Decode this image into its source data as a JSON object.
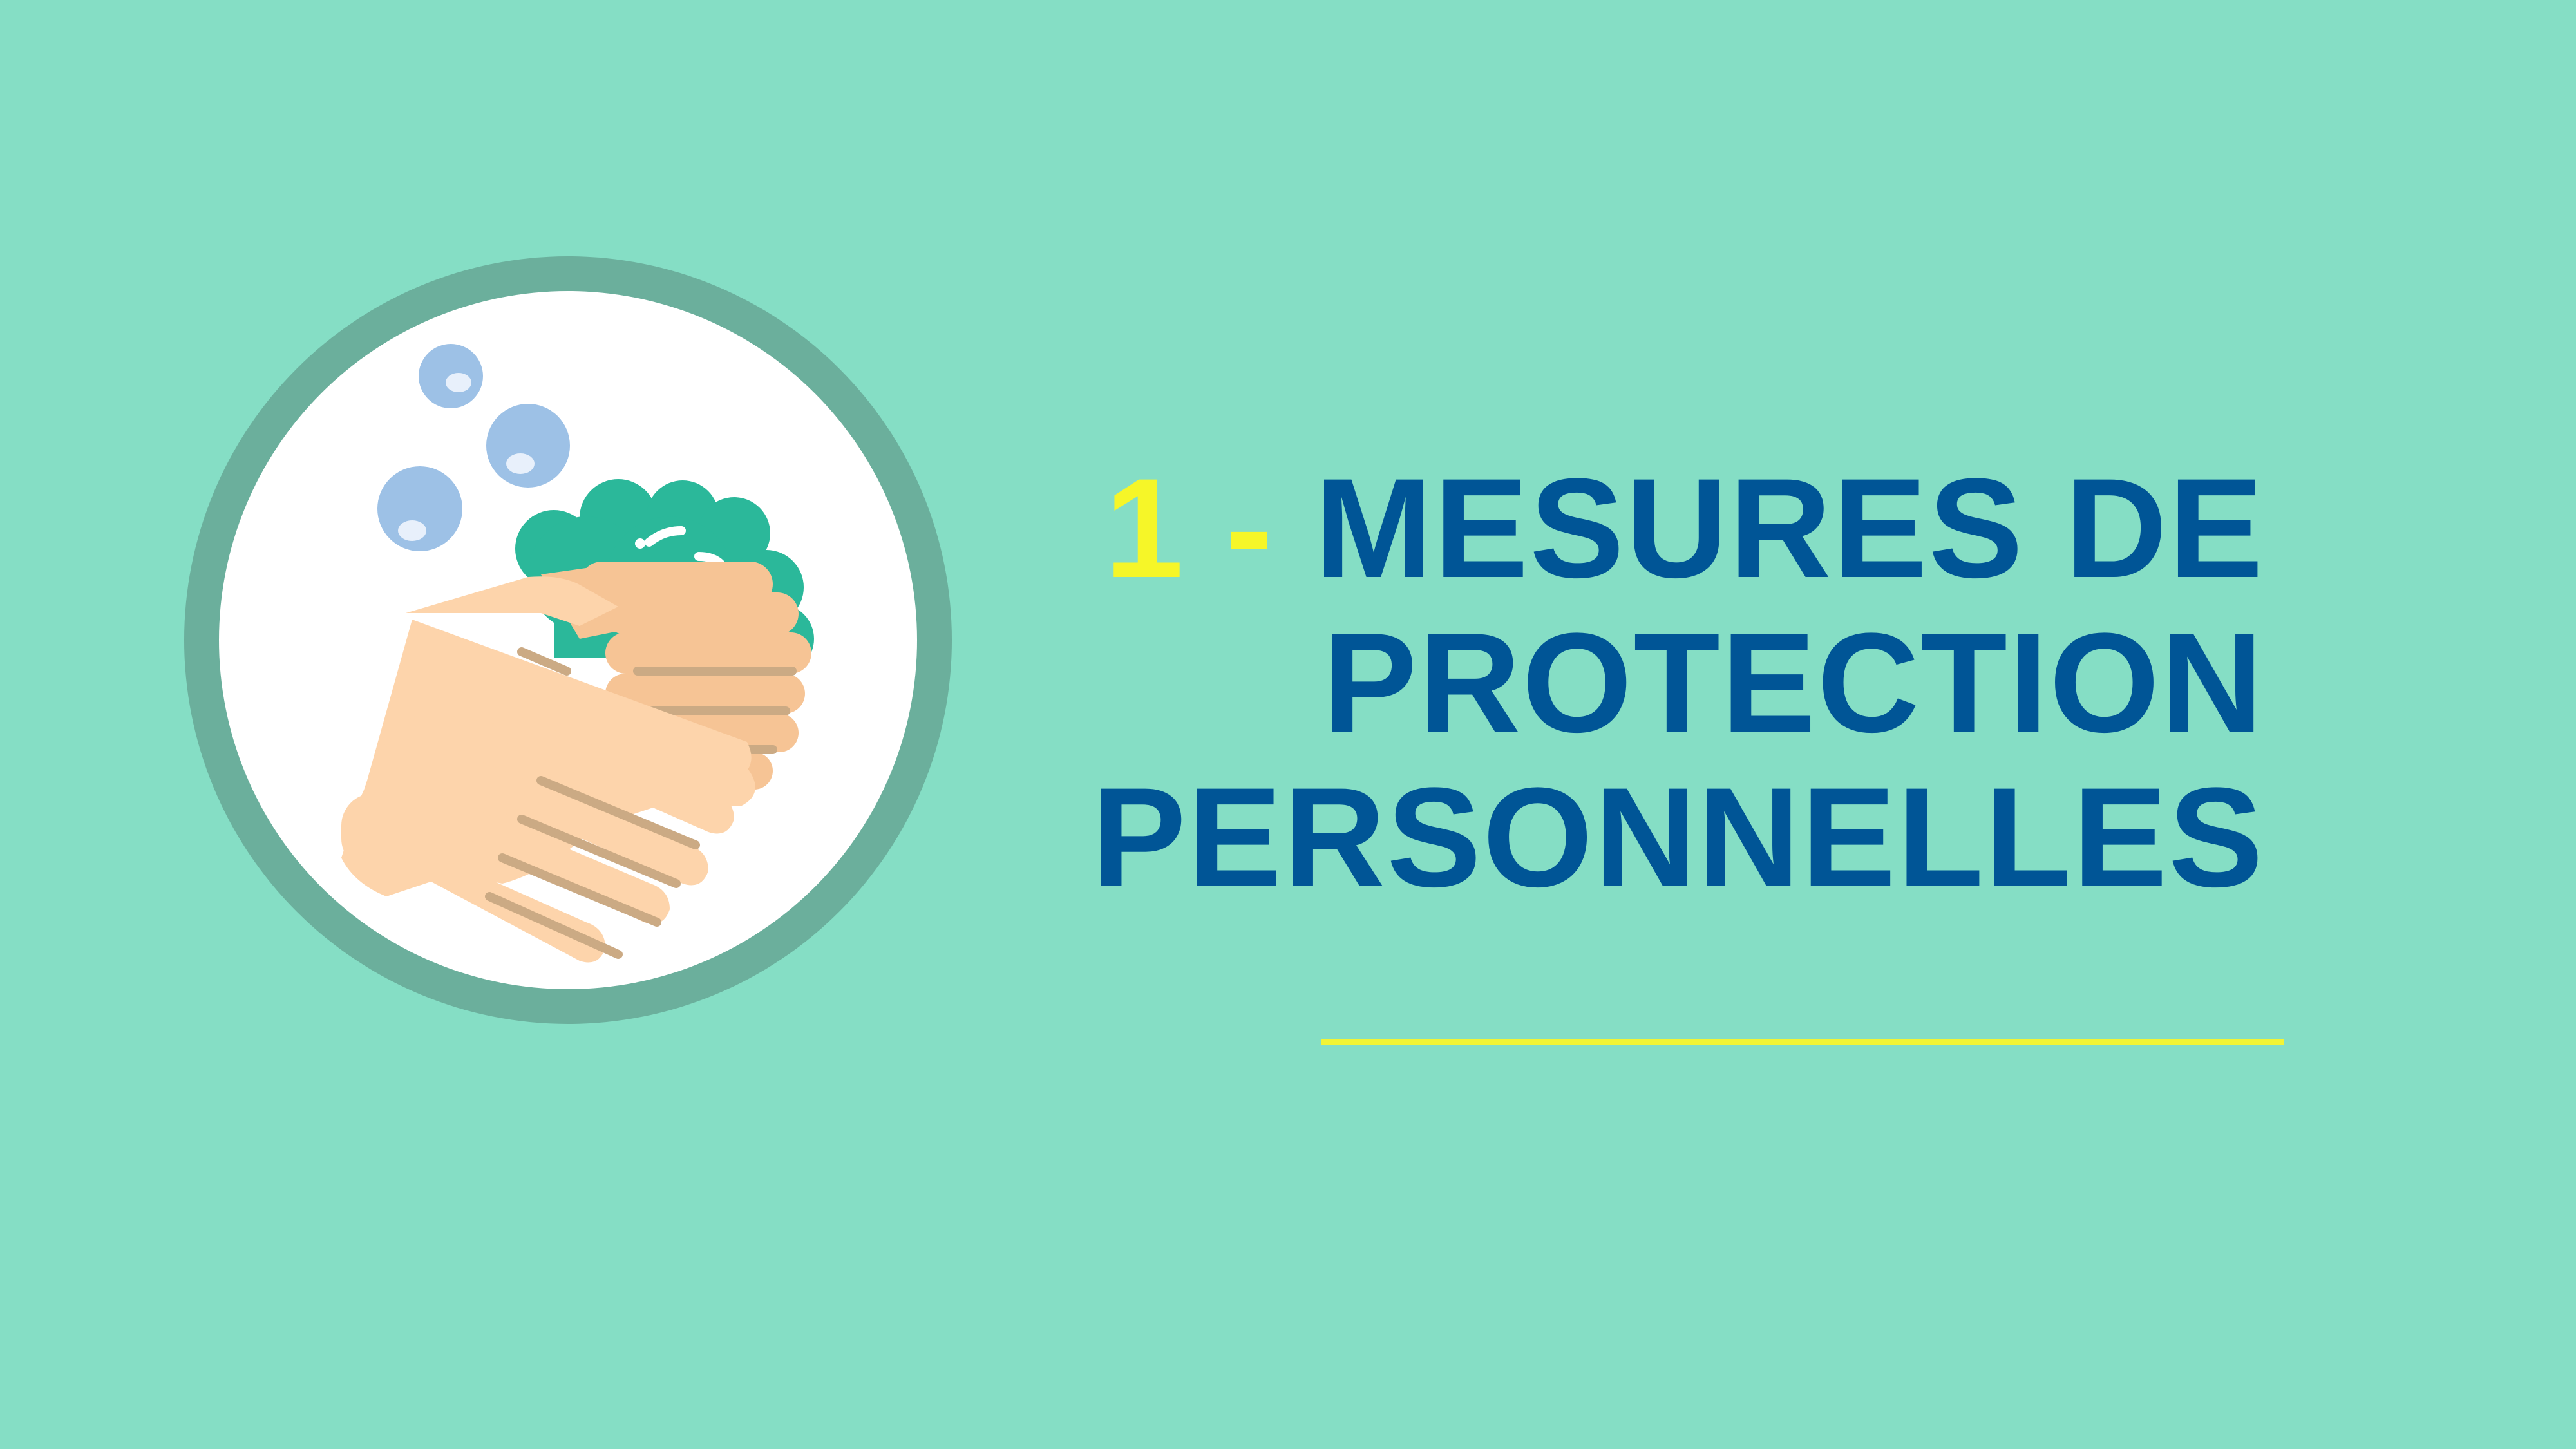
{
  "slide": {
    "title": {
      "number": "1",
      "dash": "-",
      "line1": "MESURES DE",
      "line2": "PROTECTION",
      "line3": "PERSONNELLES"
    },
    "icon": "handwashing-soap-icon"
  },
  "colors": {
    "background": "#85dec5",
    "badge_ring": "#6baf9c",
    "badge_fill": "#ffffff",
    "title_text": "#005596",
    "title_accent": "#f6f628",
    "rule": "#f2f435"
  }
}
